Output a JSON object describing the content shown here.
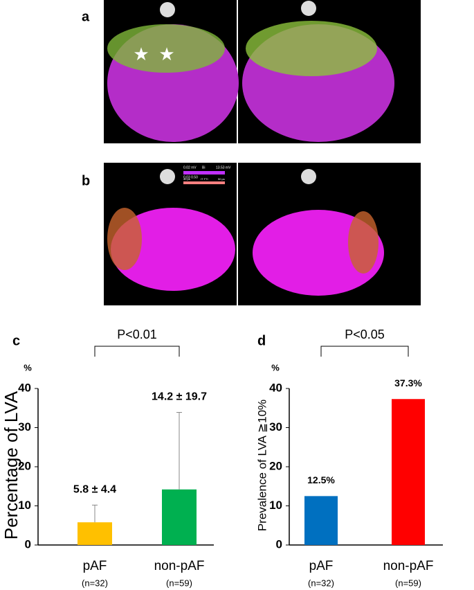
{
  "panels": {
    "a": {
      "label": "a"
    },
    "b": {
      "label": "b",
      "legend": [
        "0.02 mV",
        "Bi",
        "13.53 mV",
        "0.03 0.50",
        "40 ps",
        "IT FTI",
        "50 ps"
      ]
    }
  },
  "chart_data": [
    {
      "type": "bar",
      "panel": "c",
      "annotation": "P<0.01",
      "y_unit": "%",
      "y_label": "Percentage of LVA",
      "categories": [
        "pAF",
        "non-pAF"
      ],
      "category_notes": [
        "(n=32)",
        "(n=59)"
      ],
      "series": [
        {
          "name": null,
          "colors": [
            "#ffc000",
            "#00b050"
          ],
          "values": [
            5.8,
            14.2
          ],
          "errors": [
            4.4,
            19.7
          ],
          "value_labels": [
            "5.8 ± 4.4",
            "14.2 ± 19.7"
          ]
        }
      ],
      "ylim": [
        0,
        40
      ],
      "yticks": [
        0,
        10,
        20,
        30,
        40
      ]
    },
    {
      "type": "bar",
      "panel": "d",
      "annotation": "P<0.05",
      "y_unit": "%",
      "y_label": "Prevalence of LVA ≧10%",
      "categories": [
        "pAF",
        "non-pAF"
      ],
      "category_notes": [
        "(n=32)",
        "(n=59)"
      ],
      "series": [
        {
          "name": null,
          "colors": [
            "#0070c0",
            "#ff0000"
          ],
          "values": [
            12.5,
            37.3
          ],
          "value_labels": [
            "12.5%",
            "37.3%"
          ]
        }
      ],
      "ylim": [
        0,
        40
      ],
      "yticks": [
        0,
        10,
        20,
        30,
        40
      ]
    }
  ]
}
